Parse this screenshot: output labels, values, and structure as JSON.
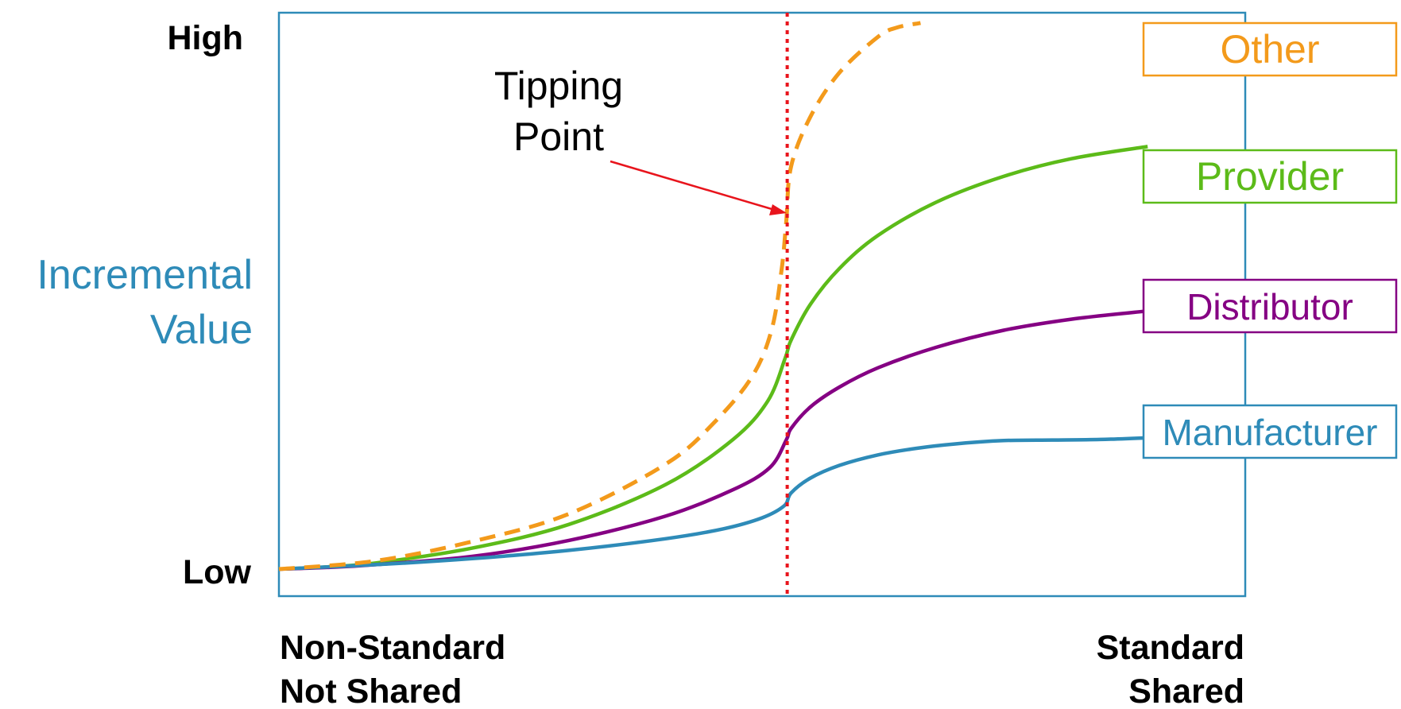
{
  "colors": {
    "frame": "#2E8BB8",
    "tipping_line": "#E8141C",
    "arrow": "#E8141C",
    "axis_title": "#2E8BB8"
  },
  "chart_data": {
    "type": "line",
    "title": "",
    "ylabel_lines": [
      "Incremental",
      "Value"
    ],
    "y_ticks": {
      "high": "High",
      "low": "Low"
    },
    "x_ticks": {
      "left": [
        "Non-Standard",
        "Not Shared"
      ],
      "right": [
        "Standard",
        "Shared"
      ]
    },
    "xlim": [
      0,
      100
    ],
    "ylim": [
      0,
      100
    ],
    "grid": false,
    "legend_placement": "right",
    "tipping_point": {
      "x": 52.6,
      "label_lines": [
        "Tipping",
        "Point"
      ]
    },
    "series": [
      {
        "name": "Other",
        "color": "#F39A1B",
        "dash": true,
        "points": [
          [
            0,
            0
          ],
          [
            10,
            1.5
          ],
          [
            20,
            5
          ],
          [
            30,
            10
          ],
          [
            40,
            19
          ],
          [
            45,
            26.5
          ],
          [
            49,
            35
          ],
          [
            51,
            43.5
          ],
          [
            52,
            54
          ],
          [
            52.5,
            63
          ],
          [
            53,
            73
          ],
          [
            55,
            82
          ],
          [
            58,
            90
          ],
          [
            62,
            96.5
          ],
          [
            64,
            98.2
          ],
          [
            66.4,
            99
          ]
        ]
      },
      {
        "name": "Provider",
        "color": "#5CBB19",
        "dash": false,
        "points": [
          [
            0,
            0
          ],
          [
            5,
            0.4
          ],
          [
            10,
            1.1
          ],
          [
            20,
            3.8
          ],
          [
            30,
            8.1
          ],
          [
            40,
            15.3
          ],
          [
            47,
            23.5
          ],
          [
            50.6,
            30.5
          ],
          [
            52.4,
            38.3
          ],
          [
            53,
            41.5
          ],
          [
            55,
            48
          ],
          [
            58,
            54.5
          ],
          [
            62,
            60.5
          ],
          [
            68,
            66.5
          ],
          [
            75,
            71.2
          ],
          [
            82,
            74.4
          ],
          [
            89.9,
            76.6
          ]
        ]
      },
      {
        "name": "Distributor",
        "color": "#850083",
        "dash": false,
        "points": [
          [
            0,
            0
          ],
          [
            5,
            0.3
          ],
          [
            10,
            0.8
          ],
          [
            20,
            2.3
          ],
          [
            30,
            5.2
          ],
          [
            40,
            9.6
          ],
          [
            47,
            14.4
          ],
          [
            50.8,
            18.4
          ],
          [
            52.5,
            23.4
          ],
          [
            53,
            25.5
          ],
          [
            55,
            29.4
          ],
          [
            58,
            33
          ],
          [
            62,
            36.5
          ],
          [
            68,
            40.2
          ],
          [
            75,
            43.3
          ],
          [
            82,
            45.3
          ],
          [
            89.9,
            46.8
          ]
        ]
      },
      {
        "name": "Manufacturer",
        "color": "#2E8BB8",
        "dash": false,
        "points": [
          [
            0,
            0
          ],
          [
            10,
            0.8
          ],
          [
            20,
            1.9
          ],
          [
            30,
            3.4
          ],
          [
            40,
            5.5
          ],
          [
            46,
            7.3
          ],
          [
            50,
            9.3
          ],
          [
            52.3,
            11.5
          ],
          [
            53,
            13.8
          ],
          [
            55,
            16.5
          ],
          [
            58,
            18.8
          ],
          [
            62,
            20.7
          ],
          [
            66,
            21.9
          ],
          [
            70,
            22.7
          ],
          [
            75,
            23.3
          ],
          [
            80,
            23.4
          ],
          [
            85,
            23.5
          ],
          [
            89.9,
            23.8
          ]
        ]
      }
    ]
  }
}
